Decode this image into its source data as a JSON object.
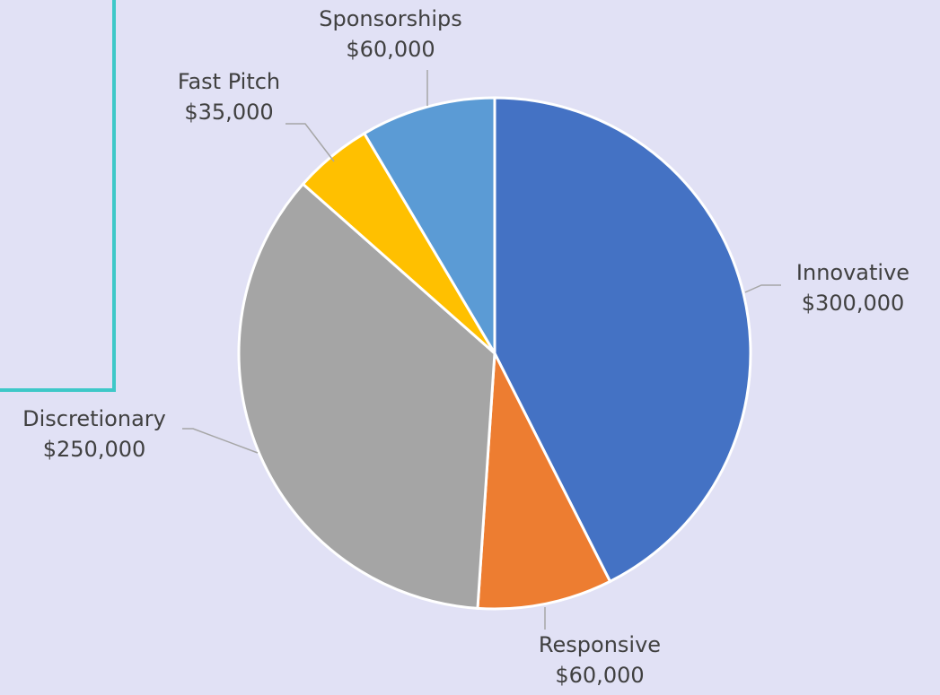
{
  "chart_data": {
    "type": "pie",
    "categories": [
      "Innovative",
      "Responsive",
      "Discretionary",
      "Fast Pitch",
      "Sponsorships"
    ],
    "values": [
      300000,
      60000,
      250000,
      35000,
      60000
    ],
    "value_labels": [
      "$300,000",
      "$60,000",
      "$250,000",
      "$35,000",
      "$60,000"
    ],
    "colors": [
      "#4472c4",
      "#ed7d31",
      "#a5a5a5",
      "#ffc000",
      "#5b9bd5"
    ]
  }
}
